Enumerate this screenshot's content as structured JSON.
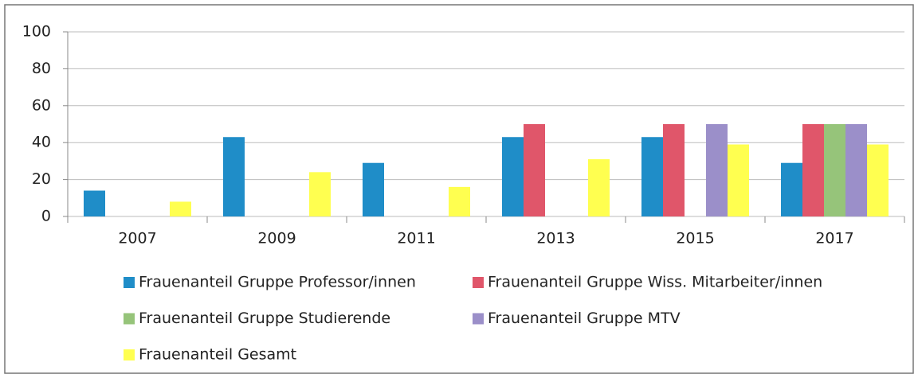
{
  "chart_data": {
    "type": "bar",
    "categories": [
      "2007",
      "2009",
      "2011",
      "2013",
      "2015",
      "2017"
    ],
    "series": [
      {
        "name": "Frauenanteil Gruppe Professor/innen",
        "color": "#1f8dc8",
        "values": [
          14,
          43,
          29,
          43,
          43,
          29
        ]
      },
      {
        "name": "Frauenanteil Gruppe Wiss. Mitarbeiter/innen",
        "color": "#e0566a",
        "values": [
          null,
          null,
          null,
          50,
          50,
          50
        ]
      },
      {
        "name": "Frauenanteil Gruppe Studierende",
        "color": "#96c47a",
        "values": [
          null,
          null,
          null,
          null,
          null,
          50
        ]
      },
      {
        "name": "Frauenanteil Gruppe MTV",
        "color": "#9b8fc9",
        "values": [
          null,
          null,
          null,
          null,
          50,
          50
        ]
      },
      {
        "name": "Frauenanteil Gesamt",
        "color": "#ffff50",
        "values": [
          8,
          24,
          16,
          31,
          39,
          39
        ]
      }
    ],
    "ylim": [
      0,
      100
    ],
    "yticks": [
      0,
      20,
      40,
      60,
      80,
      100
    ],
    "grid": true,
    "legend": "bottom"
  }
}
